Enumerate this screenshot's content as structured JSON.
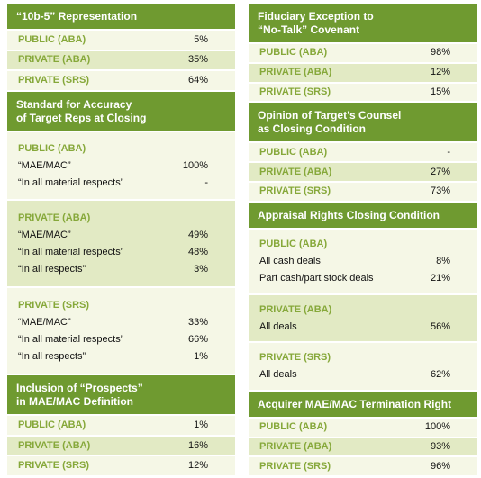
{
  "left": [
    {
      "title_lines": [
        "“10b-5” Representation"
      ],
      "rows": [
        {
          "label": "PUBLIC (ABA)",
          "value": "5%"
        },
        {
          "label": "PRIVATE (ABA)",
          "value": "35%"
        },
        {
          "label": "PRIVATE (SRS)",
          "value": "64%"
        }
      ]
    },
    {
      "title_lines": [
        "Standard for Accuracy",
        "of Target Reps at Closing"
      ],
      "groups": [
        {
          "label": "PUBLIC (ABA)",
          "items": [
            {
              "text": "“MAE/MAC”",
              "value": "100%"
            },
            {
              "text": "“In all material respects”",
              "value": "-"
            }
          ]
        },
        {
          "label": "PRIVATE (ABA)",
          "items": [
            {
              "text": "“MAE/MAC”",
              "value": "49%"
            },
            {
              "text": "“In all material respects”",
              "value": "48%"
            },
            {
              "text": "“In all respects”",
              "value": "3%"
            }
          ]
        },
        {
          "label": "PRIVATE (SRS)",
          "items": [
            {
              "text": "“MAE/MAC”",
              "value": "33%"
            },
            {
              "text": "“In all material respects”",
              "value": "66%"
            },
            {
              "text": "“In all respects”",
              "value": "1%"
            }
          ]
        }
      ]
    },
    {
      "title_lines": [
        "Inclusion of “Prospects”",
        "in MAE/MAC Definition"
      ],
      "rows": [
        {
          "label": "PUBLIC (ABA)",
          "value": "1%"
        },
        {
          "label": "PRIVATE (ABA)",
          "value": "16%"
        },
        {
          "label": "PRIVATE (SRS)",
          "value": "12%"
        }
      ]
    }
  ],
  "right": [
    {
      "title_lines": [
        "Fiduciary Exception to",
        "“No-Talk” Covenant"
      ],
      "rows": [
        {
          "label": "PUBLIC (ABA)",
          "value": "98%"
        },
        {
          "label": "PRIVATE (ABA)",
          "value": "12%"
        },
        {
          "label": "PRIVATE (SRS)",
          "value": "15%"
        }
      ]
    },
    {
      "title_lines": [
        "Opinion of Target’s Counsel",
        "as Closing Condition"
      ],
      "rows": [
        {
          "label": "PUBLIC (ABA)",
          "value": "-"
        },
        {
          "label": "PRIVATE (ABA)",
          "value": "27%"
        },
        {
          "label": "PRIVATE (SRS)",
          "value": "73%"
        }
      ]
    },
    {
      "title_lines": [
        "Appraisal Rights Closing Condition"
      ],
      "groups": [
        {
          "label": "PUBLIC (ABA)",
          "items": [
            {
              "text": "All cash deals",
              "value": "8%"
            },
            {
              "text": "Part cash/part stock deals",
              "value": "21%"
            }
          ]
        },
        {
          "label": "PRIVATE (ABA)",
          "items": [
            {
              "text": "All deals",
              "value": "56%"
            }
          ]
        },
        {
          "label": "PRIVATE (SRS)",
          "items": [
            {
              "text": "All deals",
              "value": "62%"
            }
          ]
        }
      ]
    },
    {
      "title_lines": [
        "Acquirer MAE/MAC Termination Right"
      ],
      "rows": [
        {
          "label": "PUBLIC (ABA)",
          "value": "100%"
        },
        {
          "label": "PRIVATE (ABA)",
          "value": "93%"
        },
        {
          "label": "PRIVATE (SRS)",
          "value": "96%"
        }
      ]
    }
  ]
}
